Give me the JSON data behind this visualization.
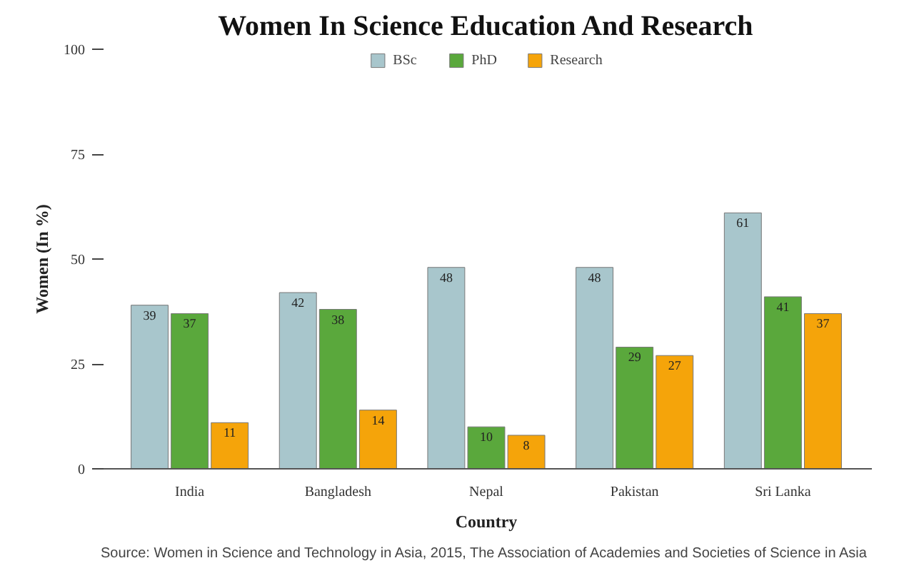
{
  "chart_data": {
    "type": "bar",
    "title": "Women In Science Education And Research",
    "xlabel": "Country",
    "ylabel": "Women (In %)",
    "categories": [
      "India",
      "Bangladesh",
      "Nepal",
      "Pakistan",
      "Sri Lanka"
    ],
    "series": [
      {
        "name": "BSc",
        "color": "#a8c6cc",
        "values": [
          39,
          42,
          48,
          48,
          61
        ]
      },
      {
        "name": "PhD",
        "color": "#5aa83c",
        "values": [
          37,
          38,
          10,
          29,
          41
        ]
      },
      {
        "name": "Research",
        "color": "#f5a40a",
        "values": [
          11,
          14,
          8,
          27,
          37
        ]
      }
    ],
    "ylim": [
      0,
      100
    ],
    "yticks": [
      0,
      25,
      50,
      75,
      100
    ],
    "grid": false,
    "legend": "top",
    "data_labels": true,
    "annotations": [
      "Source: Women in Science and Technology in Asia, 2015, The Association of Academies and Societies of Science in Asia"
    ]
  }
}
